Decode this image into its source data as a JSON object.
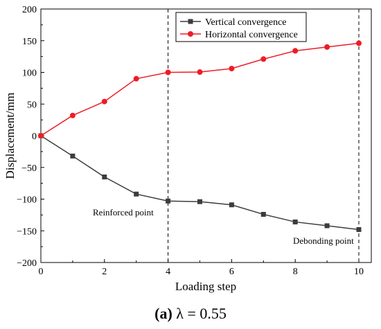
{
  "chart_data": {
    "type": "line",
    "xlabel": "Loading step",
    "ylabel": "Displacement/mm",
    "xlim": [
      0,
      10
    ],
    "ylim": [
      -200,
      200
    ],
    "x_ticks": [
      "0",
      "2",
      "4",
      "6",
      "8",
      "10"
    ],
    "y_ticks": [
      "200",
      "150",
      "100",
      "50",
      "0",
      "−50",
      "−100",
      "−150",
      "−200"
    ],
    "grid": false,
    "legend_position": "top-right",
    "x": [
      0,
      1,
      2,
      3,
      4,
      5,
      6,
      7,
      8,
      9,
      10
    ],
    "series": [
      {
        "name": "Vertical convergence",
        "marker": "square",
        "color": "#3c3c3c",
        "values": [
          0,
          -32,
          -65,
          -92,
          -103,
          -104,
          -109,
          -124,
          -136,
          -142,
          -148
        ]
      },
      {
        "name": "Horizontal convergence",
        "marker": "circle",
        "color": "#ee1c25",
        "values": [
          0,
          32,
          54,
          90,
          100,
          100.5,
          106,
          121,
          134,
          140,
          146
        ]
      }
    ],
    "annotations": [
      {
        "text": "Reinforced point",
        "x": 4
      },
      {
        "text": "Debonding point",
        "x": 10
      }
    ]
  },
  "caption": {
    "label": "(a)",
    "rest": " λ = 0.55"
  }
}
